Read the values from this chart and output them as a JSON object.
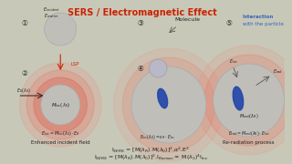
{
  "title": "SERS / Electromagnetic Effect",
  "title_color": "#cc2200",
  "bg_color": "#c8c8b8",
  "panel_bg": "#deded4",
  "formula1": "I$_{SERS}$ = [M($\\lambda_{R}$).M($\\lambda_{0}$)]$^{2}$.$\\alpha^{2}$.E$^{2}$",
  "formula2": "I$_{SERS}$ = [M($\\lambda_{R}$).M($\\lambda_{0}$)]$^{2}$.I$_{Raman}$$\\approx$ M($\\lambda_{0}$)$^{4}$I$_{Inc}$",
  "label_enhanced": "Enhanced incident field",
  "label_rerad": "Re-radiation process",
  "label_molecule": "Molecule",
  "label_interaction": "Interaction",
  "label_with": "with the particle",
  "np_color": "#c0beb8",
  "np_edge": "#aaaaaa",
  "glow_inner": "#e87060",
  "glow_outer": "#f0b0a0",
  "blue_mol": "#2244aa",
  "arrow_red": "#cc2200",
  "text_dark": "#222222",
  "text_blue": "#3366bb",
  "formula_color": "#222222",
  "white": "#ffffff"
}
